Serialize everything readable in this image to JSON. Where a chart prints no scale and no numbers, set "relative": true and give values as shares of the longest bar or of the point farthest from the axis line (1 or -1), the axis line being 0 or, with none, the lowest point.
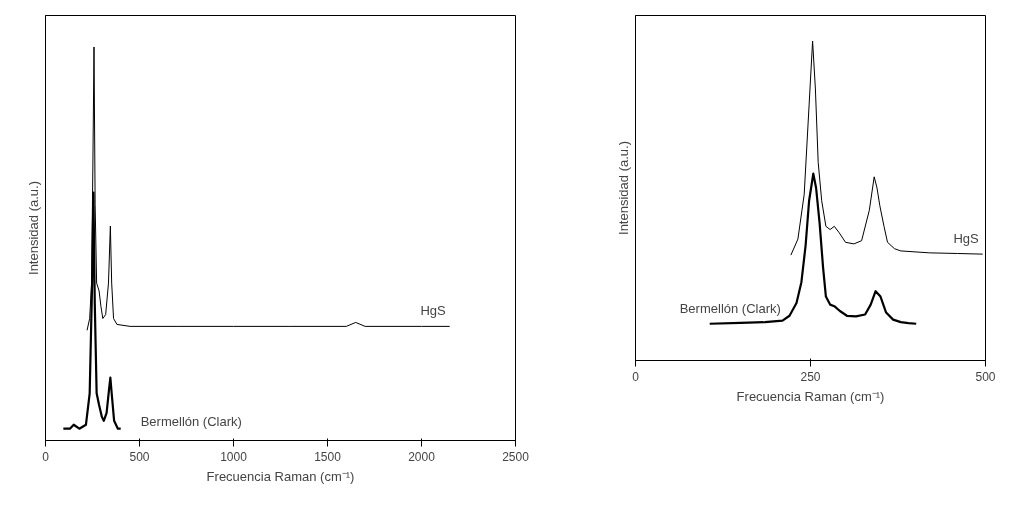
{
  "chart_data": [
    {
      "type": "line",
      "relative": true,
      "xlabel": "Frecuencia Raman (cm⁻¹)",
      "ylabel": "Intensidad (a.u.)",
      "xlim": [
        0,
        2500
      ],
      "xticks": [
        0,
        500,
        1000,
        1500,
        2000,
        2500
      ],
      "tick_labels": "x",
      "grid": false,
      "line_style": "solid",
      "series": [
        {
          "name": "HgS",
          "color": "#000000",
          "x": [
            221,
            235,
            245,
            252,
            258,
            264,
            272,
            285,
            295,
            305,
            320,
            335,
            345,
            352,
            362,
            380,
            450,
            700,
            1000,
            1300,
            1600,
            1650,
            1700,
            2000,
            2150
          ],
          "values": [
            0.28,
            0.31,
            0.4,
            0.7,
            1.0,
            0.6,
            0.4,
            0.38,
            0.34,
            0.31,
            0.32,
            0.4,
            0.545,
            0.4,
            0.31,
            0.295,
            0.29,
            0.29,
            0.29,
            0.29,
            0.29,
            0.3,
            0.29,
            0.29,
            0.29
          ]
        },
        {
          "name": "Bermellón (Clark)",
          "color": "#000000",
          "x": [
            95,
            130,
            150,
            180,
            215,
            235,
            248,
            255,
            262,
            272,
            285,
            300,
            310,
            325,
            338,
            345,
            352,
            365,
            385,
            400
          ],
          "values": [
            0.03,
            0.03,
            0.04,
            0.03,
            0.04,
            0.12,
            0.4,
            0.63,
            0.35,
            0.12,
            0.09,
            0.06,
            0.05,
            0.07,
            0.13,
            0.16,
            0.12,
            0.05,
            0.03,
            0.03
          ]
        }
      ]
    },
    {
      "type": "line",
      "relative": true,
      "xlabel": "Frecuencia Raman (cm⁻¹)",
      "ylabel": "Intensidad (a.u.)",
      "xlim": [
        0,
        500
      ],
      "xticks": [
        0,
        250,
        500
      ],
      "tick_labels": "x",
      "grid": false,
      "line_style": "solid",
      "series": [
        {
          "name": "HgS",
          "color": "#000000",
          "x": [
            222,
            232,
            241,
            248,
            253,
            257,
            261,
            266,
            272,
            278,
            284,
            291,
            300,
            312,
            323,
            334,
            341,
            345,
            349,
            355,
            360,
            370,
            379,
            420,
            460,
            496
          ],
          "values": [
            0.33,
            0.38,
            0.52,
            0.8,
            1.0,
            0.85,
            0.62,
            0.5,
            0.42,
            0.41,
            0.42,
            0.4,
            0.37,
            0.365,
            0.375,
            0.47,
            0.575,
            0.54,
            0.485,
            0.42,
            0.37,
            0.35,
            0.343,
            0.337,
            0.335,
            0.333
          ]
        },
        {
          "name": "Bermellón (Clark)",
          "color": "#000000",
          "x": [
            106,
            150,
            185,
            210,
            220,
            230,
            237,
            243,
            248,
            254,
            258,
            263,
            268,
            272,
            278,
            284,
            292,
            302,
            315,
            328,
            336,
            343,
            350,
            358,
            368,
            379,
            390,
            401
          ],
          "values": [
            0.115,
            0.118,
            0.12,
            0.125,
            0.14,
            0.18,
            0.245,
            0.36,
            0.5,
            0.585,
            0.54,
            0.43,
            0.29,
            0.2,
            0.175,
            0.17,
            0.155,
            0.14,
            0.138,
            0.144,
            0.175,
            0.217,
            0.2,
            0.15,
            0.128,
            0.12,
            0.117,
            0.115
          ]
        }
      ]
    }
  ]
}
